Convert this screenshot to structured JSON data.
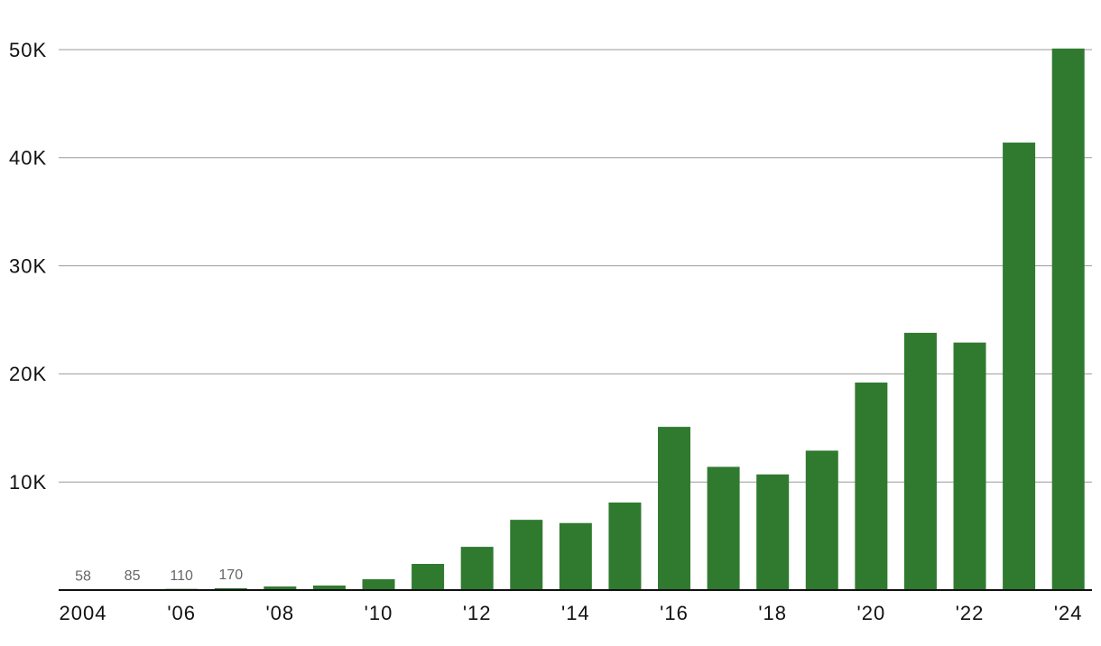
{
  "chart_data": {
    "type": "bar",
    "categories": [
      "2004",
      null,
      "'06",
      null,
      "'08",
      null,
      "'10",
      null,
      "'12",
      null,
      "'14",
      null,
      "'16",
      null,
      "'18",
      null,
      "'20",
      null,
      "'22",
      null,
      "'24"
    ],
    "values": [
      58,
      85,
      110,
      170,
      330,
      420,
      1000,
      2420,
      4000,
      6500,
      6200,
      8100,
      15100,
      11400,
      10700,
      12900,
      19200,
      23800,
      22900,
      41400,
      50100
    ],
    "color": "#307a30",
    "ylim": [
      0,
      52000
    ],
    "yticks": [
      {
        "value": 10000,
        "label": "10K"
      },
      {
        "value": 20000,
        "label": "20K"
      },
      {
        "value": 30000,
        "label": "30K"
      },
      {
        "value": 40000,
        "label": "40K"
      },
      {
        "value": 50000,
        "label": "50K"
      }
    ],
    "grid": true
  }
}
